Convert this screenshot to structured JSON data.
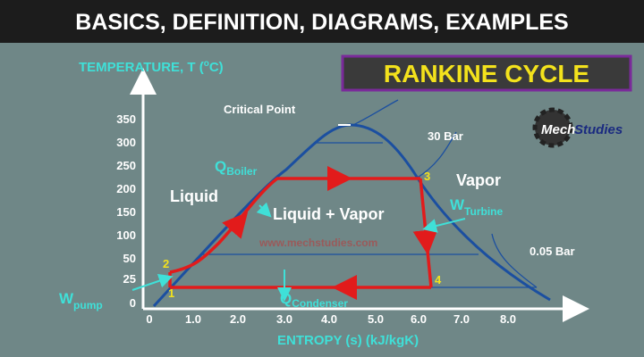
{
  "banner": "BASICS, DEFINITION, DIAGRAMS, EXAMPLES",
  "title": "RANKINE CYCLE",
  "logo": {
    "mech": "Mech",
    "studies": "Studies"
  },
  "y_axis": {
    "label": "TEMPERATURE, T (",
    "unit_sup": "o",
    "unit": "C)",
    "ticks": [
      "350",
      "300",
      "250",
      "200",
      "150",
      "100",
      "50",
      "25",
      "0"
    ]
  },
  "x_axis": {
    "label": "ENTROPY (s) (kJ/kgK)",
    "ticks": [
      "0",
      "1.0",
      "2.0",
      "3.0",
      "4.0",
      "5.0",
      "6.0",
      "7.0",
      "8.0"
    ]
  },
  "labels": {
    "critical_point": "Critical Point",
    "high_pressure": "30 Bar",
    "low_pressure": "0.05 Bar",
    "vapor": "Vapor",
    "liquid": "Liquid",
    "mixture": "Liquid + Vapor",
    "watermark": "www.mechstudies.com"
  },
  "energy": {
    "q_boiler": {
      "symbol": "Q",
      "subscript": "Boiler"
    },
    "w_turbine": {
      "symbol": "W",
      "subscript": "Turbine"
    },
    "w_pump": {
      "symbol": "W",
      "subscript": "pump"
    },
    "q_condenser": {
      "symbol": "Q",
      "subscript": "Condenser"
    }
  },
  "states": [
    "1",
    "2",
    "3",
    "4"
  ]
}
